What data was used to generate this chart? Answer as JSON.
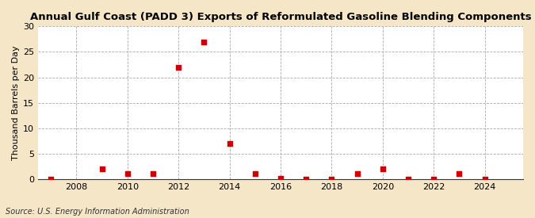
{
  "title": "Annual Gulf Coast (PADD 3) Exports of Reformulated Gasoline Blending Components",
  "ylabel": "Thousand Barrels per Day",
  "source": "Source: U.S. Energy Information Administration",
  "fig_background_color": "#f5e6c8",
  "plot_background_color": "#ffffff",
  "x_values": [
    2007,
    2009,
    2010,
    2011,
    2012,
    2013,
    2014,
    2015,
    2016,
    2017,
    2018,
    2019,
    2020,
    2021,
    2022,
    2023,
    2024
  ],
  "y_values": [
    0.03,
    2.0,
    1.0,
    1.0,
    22.0,
    27.0,
    7.0,
    1.0,
    0.07,
    0.05,
    0.05,
    1.0,
    2.0,
    0.05,
    0.05,
    1.0,
    0.05
  ],
  "marker_color": "#cc0000",
  "marker_size": 4,
  "xlim": [
    2006.5,
    2025.5
  ],
  "ylim": [
    0,
    30
  ],
  "yticks": [
    0,
    5,
    10,
    15,
    20,
    25,
    30
  ],
  "xticks": [
    2008,
    2010,
    2012,
    2014,
    2016,
    2018,
    2020,
    2022,
    2024
  ],
  "grid_color": "#aaaaaa",
  "title_fontsize": 9.5,
  "label_fontsize": 8,
  "tick_fontsize": 8,
  "source_fontsize": 7
}
